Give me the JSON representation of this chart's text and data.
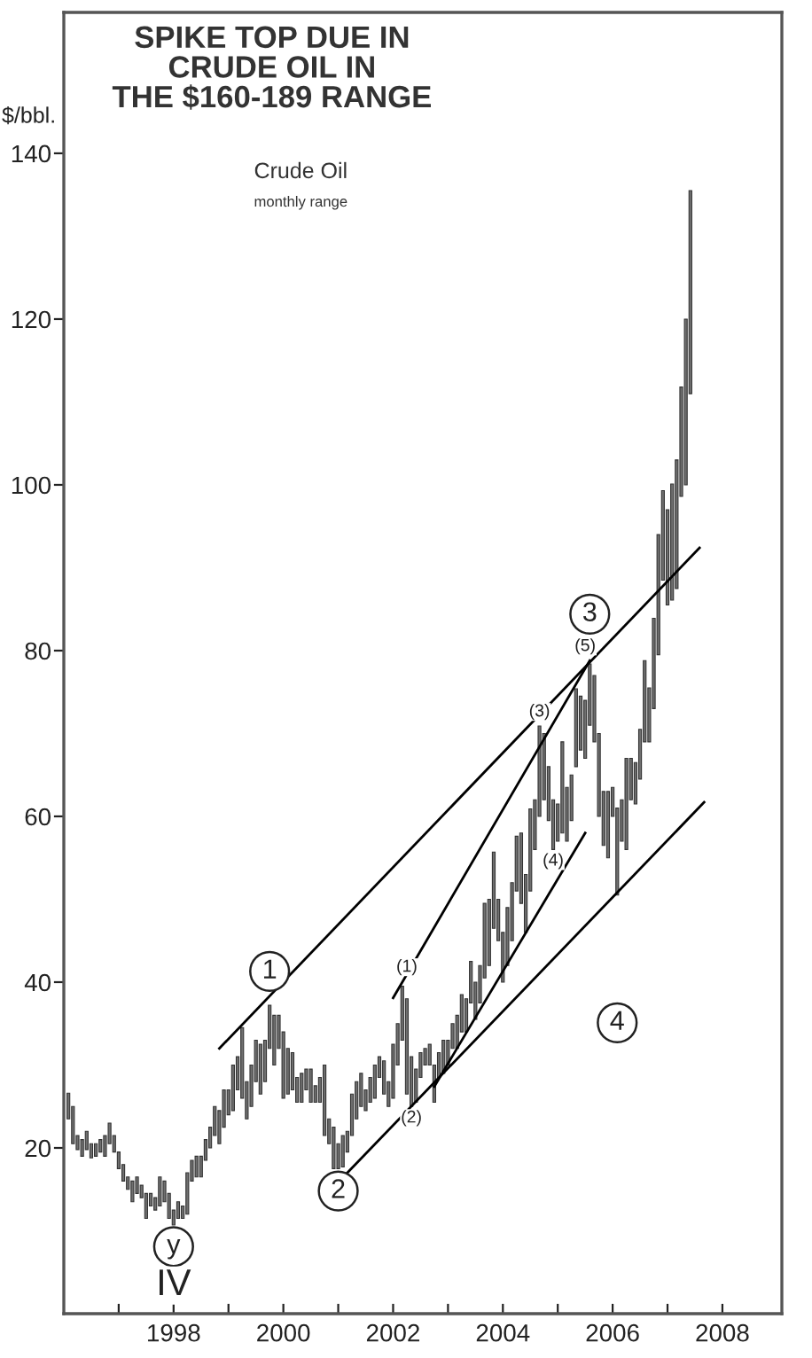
{
  "chart_data": {
    "type": "bar",
    "title": "SPIKE TOP DUE IN\nCRUDE OIL IN\nTHE $160-189 RANGE",
    "subtitle": "Crude Oil",
    "ylabel": "$/bbl.",
    "annotations": [
      "monthly range",
      {
        "text": "1",
        "x": "1999-10",
        "y": 41.3
      },
      {
        "text": "2",
        "x": "2001-01",
        "y": 14.8
      },
      {
        "text": "3",
        "x": "2005-08",
        "y": 84.4
      },
      {
        "text": "4",
        "x": "2006-02",
        "y": 35.1
      },
      {
        "text": "y",
        "x": "1998-01",
        "y": 8.1
      },
      {
        "text": "IV",
        "x": "1998-01",
        "y": 3.4
      },
      {
        "text": "(1)",
        "x": "2002-04",
        "y": 41.8
      },
      {
        "text": "(2)",
        "x": "2002-05",
        "y": 23.6
      },
      {
        "text": "(3)",
        "x": "2004-09",
        "y": 72.6
      },
      {
        "text": "(4)",
        "x": "2004-12",
        "y": 54.6
      },
      {
        "text": "(5)",
        "x": "2005-07",
        "y": 80.5
      }
    ],
    "xlim": [
      "1996",
      "2009-02"
    ],
    "ylim": [
      0,
      157
    ],
    "xticks": [
      {
        "value": "1997",
        "label": null
      },
      "1998",
      {
        "value": "1999",
        "label": null
      },
      "2000",
      {
        "value": "2001",
        "label": null
      },
      "2002",
      {
        "value": "2003",
        "label": null
      },
      "2004",
      {
        "value": "2005",
        "label": null
      },
      "2006",
      {
        "value": "2007",
        "label": null
      },
      "2008"
    ],
    "yticks": [
      20,
      40,
      60,
      80,
      100,
      120,
      140
    ],
    "series": [
      {
        "color": "#707070",
        "x": [
          "1996-02",
          "1996-03",
          "1996-04",
          "1996-05",
          "1996-06",
          "1996-07",
          "1996-08",
          "1996-09",
          "1996-10",
          "1996-11",
          "1996-12",
          "1997-01",
          "1997-02",
          "1997-03",
          "1997-04",
          "1997-05",
          "1997-06",
          "1997-07",
          "1997-08",
          "1997-09",
          "1997-10",
          "1997-11",
          "1997-12",
          "1998-01",
          "1998-02",
          "1998-03",
          "1998-04",
          "1998-05",
          "1998-06",
          "1998-07",
          "1998-08",
          "1998-09",
          "1998-10",
          "1998-11",
          "1998-12",
          "1999-01",
          "1999-02",
          "1999-03",
          "1999-04",
          "1999-05",
          "1999-06",
          "1999-07",
          "1999-08",
          "1999-09",
          "1999-10",
          "1999-11",
          "1999-12",
          "2000-01",
          "2000-02",
          "2000-03",
          "2000-04",
          "2000-05",
          "2000-06",
          "2000-07",
          "2000-08",
          "2000-09",
          "2000-10",
          "2000-11",
          "2000-12",
          "2001-01",
          "2001-02",
          "2001-03",
          "2001-04",
          "2001-05",
          "2001-06",
          "2001-07",
          "2001-08",
          "2001-09",
          "2001-10",
          "2001-11",
          "2001-12",
          "2002-01",
          "2002-02",
          "2002-03",
          "2002-04",
          "2002-05",
          "2002-06",
          "2002-07",
          "2002-08",
          "2002-09",
          "2002-10",
          "2002-11",
          "2002-12",
          "2003-01",
          "2003-02",
          "2003-03",
          "2003-04",
          "2003-05",
          "2003-06",
          "2003-07",
          "2003-08",
          "2003-09",
          "2003-10",
          "2003-11",
          "2003-12",
          "2004-01",
          "2004-02",
          "2004-03",
          "2004-04",
          "2004-05",
          "2004-06",
          "2004-07",
          "2004-08",
          "2004-09",
          "2004-10",
          "2004-11",
          "2004-12",
          "2005-01",
          "2005-02",
          "2005-03",
          "2005-04",
          "2005-05",
          "2005-06",
          "2005-07",
          "2005-08",
          "2005-09",
          "2005-10",
          "2005-11",
          "2005-12",
          "2006-01",
          "2006-02",
          "2006-03",
          "2006-04",
          "2006-05",
          "2006-06",
          "2006-07",
          "2006-08",
          "2006-09",
          "2006-10",
          "2006-11",
          "2006-12",
          "2007-01",
          "2007-02",
          "2007-03",
          "2007-04",
          "2007-05",
          "2007-06"
        ],
        "base": [
          23.5,
          20.5,
          19.8,
          19,
          19.8,
          18.8,
          19,
          19.5,
          19,
          20.5,
          19.5,
          17.5,
          16,
          15,
          13.5,
          14.5,
          14,
          11.5,
          13,
          12.5,
          13,
          13.5,
          11.5,
          10.7,
          11.5,
          11.5,
          12,
          16,
          16.5,
          16.5,
          18.5,
          20,
          21.5,
          20.5,
          22.5,
          24,
          24.5,
          27,
          26,
          23.5,
          25,
          28,
          26.5,
          28,
          32,
          30,
          32,
          26,
          26.5,
          27,
          25.5,
          25.5,
          27,
          25.5,
          25.5,
          25.5,
          21.5,
          20.5,
          17.5,
          17.5,
          17.7,
          19.5,
          21.5,
          23.5,
          25,
          24.5,
          25.5,
          26,
          28.5,
          26.5,
          25,
          26,
          30,
          33,
          26.5,
          25,
          25.5,
          28.5,
          30,
          30,
          25.5,
          28.5,
          29,
          30,
          32,
          32,
          34,
          34,
          37.5,
          35.5,
          37.5,
          40.5,
          42,
          46.5,
          45,
          40,
          42,
          45,
          51,
          49.5,
          46,
          51,
          56,
          60,
          62,
          59.5,
          56,
          57,
          58,
          57,
          59.5,
          66,
          68,
          67,
          71,
          69,
          60,
          56.5,
          55,
          60,
          50.5,
          57,
          56,
          62,
          61.5,
          64.5,
          69,
          69,
          73,
          79.5,
          88.5,
          85.5,
          86.1,
          87.5,
          98.6,
          100,
          111
        ],
        "values": [
          3.1,
          4.5,
          1.7,
          2,
          2.2,
          1.7,
          1.5,
          1.5,
          2.5,
          2.5,
          2,
          2,
          2,
          1.5,
          2.5,
          2,
          1.5,
          3,
          1.5,
          1.5,
          3.5,
          2.5,
          3,
          1.8,
          2,
          1.5,
          5,
          2.5,
          2.5,
          2.5,
          2.5,
          2.5,
          3.5,
          4,
          4.5,
          3,
          5.5,
          4,
          8.5,
          4.5,
          5,
          5,
          6,
          5,
          5.2,
          6,
          4,
          8,
          5.5,
          4.5,
          3,
          3.5,
          2.5,
          4,
          2,
          3,
          8.5,
          3,
          5,
          3,
          3.8,
          2.5,
          5,
          4.5,
          4,
          2.5,
          3,
          4,
          2.5,
          4,
          3,
          6.5,
          5,
          6.5,
          11.5,
          6,
          4,
          3,
          2,
          2.5,
          4.5,
          3,
          4,
          3,
          3,
          4,
          4.5,
          4,
          5,
          4.5,
          4.5,
          9,
          8,
          9.2,
          5,
          6,
          7,
          7,
          6.6,
          8.5,
          7,
          9.9,
          6,
          10.9,
          8,
          6.5,
          6,
          4.5,
          11,
          6.5,
          5.5,
          9.4,
          6.5,
          7,
          7.4,
          8,
          10,
          6.5,
          8,
          3.5,
          10.5,
          5,
          11,
          5,
          5,
          6,
          9.8,
          6.5,
          10.9,
          14.5,
          10.8,
          11.5,
          14,
          15.5,
          13.2,
          20,
          24.5
        ]
      },
      {
        "type": "line",
        "color": "#000000",
        "x": [
          "1998-11",
          "2007-08"
        ],
        "values": [
          32,
          92.4
        ]
      },
      {
        "type": "line",
        "color": "#000000",
        "x": [
          "2001-03",
          "2007-09"
        ],
        "values": [
          17,
          61.7
        ]
      },
      {
        "type": "line",
        "color": "#000000",
        "x": [
          "2002-01",
          "2005-08"
        ],
        "values": [
          38.1,
          78.8
        ]
      },
      {
        "type": "line",
        "color": "#000000",
        "x": [
          "2002-10",
          "2005-07"
        ],
        "values": [
          27.4,
          58.0
        ]
      }
    ]
  }
}
